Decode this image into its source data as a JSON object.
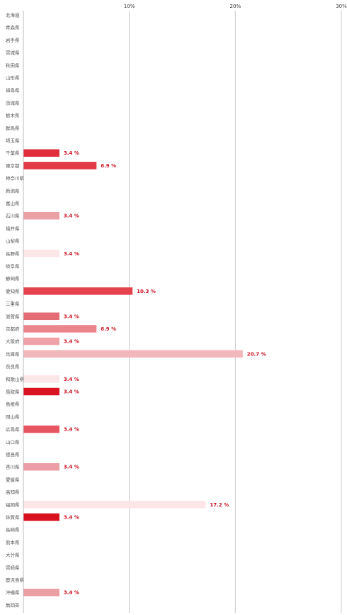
{
  "chart_data": {
    "type": "bar",
    "orientation": "horizontal",
    "categories": [
      "北海道",
      "青森県",
      "岩手県",
      "宮城県",
      "秋田県",
      "山形県",
      "福島県",
      "茨城県",
      "栃木県",
      "群馬県",
      "埼玉県",
      "千葉県",
      "東京都",
      "神奈川県",
      "新潟県",
      "富山県",
      "石川県",
      "福井県",
      "山梨県",
      "長野県",
      "岐阜県",
      "静岡県",
      "愛知県",
      "三重県",
      "滋賀県",
      "京都府",
      "大阪府",
      "兵庫県",
      "奈良県",
      "和歌山県",
      "鳥取県",
      "島根県",
      "岡山県",
      "広島県",
      "山口県",
      "徳島県",
      "香川県",
      "愛媛県",
      "高知県",
      "福岡県",
      "佐賀県",
      "長崎県",
      "熊本県",
      "大分県",
      "宮崎県",
      "鹿児島県",
      "沖縄県",
      "無回答"
    ],
    "values": [
      0,
      0,
      0,
      0,
      0,
      0,
      0,
      0,
      0,
      0,
      0,
      3.4,
      6.9,
      0,
      0,
      0,
      3.4,
      0,
      0,
      3.4,
      0,
      0,
      10.3,
      0,
      3.4,
      6.9,
      3.4,
      20.7,
      0,
      3.4,
      3.4,
      0,
      0,
      3.4,
      0,
      0,
      3.4,
      0,
      0,
      17.2,
      3.4,
      0,
      0,
      0,
      0,
      0,
      3.4,
      0
    ],
    "value_labels": [
      "",
      "",
      "",
      "",
      "",
      "",
      "",
      "",
      "",
      "",
      "",
      "3.4 %",
      "6.9 %",
      "",
      "",
      "",
      "3.4 %",
      "",
      "",
      "3.4 %",
      "",
      "",
      "10.3 %",
      "",
      "3.4 %",
      "6.9 %",
      "3.4 %",
      "20.7 %",
      "",
      "3.4 %",
      "3.4 %",
      "",
      "",
      "3.4 %",
      "",
      "",
      "3.4 %",
      "",
      "",
      "17.2 %",
      "3.4 %",
      "",
      "",
      "",
      "",
      "",
      "3.4 %",
      ""
    ],
    "colors": [
      "",
      "",
      "",
      "",
      "",
      "",
      "",
      "",
      "",
      "",
      "",
      "#e02e3c",
      "#e23b47",
      "",
      "",
      "",
      "#eba0a6",
      "",
      "",
      "#fbe6e8",
      "",
      "",
      "#e6424e",
      "",
      "#e46c74",
      "#ec848b",
      "#efa1a7",
      "#f2b7bb",
      "",
      "#fbe6e8",
      "#da1323",
      "",
      "",
      "#e65560",
      "",
      "",
      "#eb9ea5",
      "",
      "",
      "#fbe5e6",
      "#d8111f",
      "",
      "",
      "",
      "",
      "",
      "#eb9ea4",
      ""
    ],
    "xlim": [
      0,
      30
    ],
    "ticks": [
      "10%",
      "20%",
      "30%"
    ],
    "tick_values": [
      10,
      20,
      30
    ],
    "grid": true
  }
}
